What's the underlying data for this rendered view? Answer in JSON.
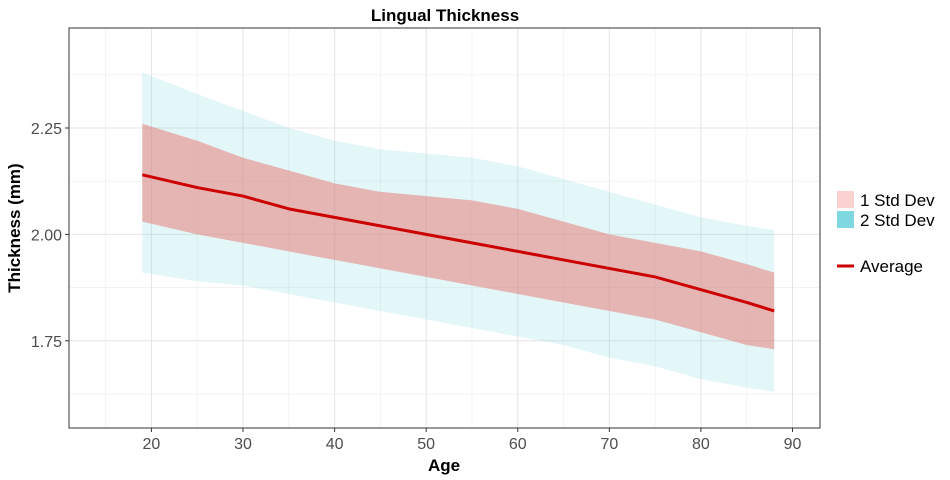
{
  "chart_data": {
    "type": "area",
    "title": "Lingual Thickness",
    "xlabel": "Age",
    "ylabel": "Thickness (mm)",
    "xlim": [
      11,
      93
    ],
    "ylim": [
      1.545,
      2.485
    ],
    "x_ticks": [
      20,
      30,
      40,
      50,
      60,
      70,
      80,
      90
    ],
    "y_ticks": [
      1.75,
      2.0,
      2.25
    ],
    "y_tick_labels": [
      "1.75",
      "2.00",
      "2.25"
    ],
    "grid": true,
    "legend_position": "right",
    "x": [
      19,
      25,
      30,
      35,
      40,
      45,
      50,
      55,
      60,
      65,
      70,
      75,
      80,
      85,
      88
    ],
    "series": [
      {
        "name": "2 Std Dev",
        "kind": "ribbon",
        "color": "#7fd8e0",
        "upper": [
          2.38,
          2.33,
          2.29,
          2.25,
          2.22,
          2.2,
          2.19,
          2.18,
          2.16,
          2.13,
          2.1,
          2.07,
          2.04,
          2.02,
          2.01
        ],
        "lower": [
          1.91,
          1.89,
          1.88,
          1.86,
          1.84,
          1.82,
          1.8,
          1.78,
          1.76,
          1.74,
          1.71,
          1.69,
          1.66,
          1.64,
          1.63
        ]
      },
      {
        "name": "1 Std Dev",
        "kind": "ribbon",
        "color": "#e8807a",
        "upper": [
          2.26,
          2.22,
          2.18,
          2.15,
          2.12,
          2.1,
          2.09,
          2.08,
          2.06,
          2.03,
          2.0,
          1.98,
          1.96,
          1.93,
          1.91
        ],
        "lower": [
          2.03,
          2.0,
          1.98,
          1.96,
          1.94,
          1.92,
          1.9,
          1.88,
          1.86,
          1.84,
          1.82,
          1.8,
          1.77,
          1.74,
          1.73
        ]
      },
      {
        "name": "Average",
        "kind": "line",
        "color": "#cc0000",
        "values": [
          2.14,
          2.11,
          2.09,
          2.06,
          2.04,
          2.02,
          2.0,
          1.98,
          1.96,
          1.94,
          1.92,
          1.9,
          1.87,
          1.84,
          1.82
        ]
      }
    ],
    "legend": {
      "fill_items": [
        "1 Std Dev",
        "2 Std Dev"
      ],
      "line_items": [
        "Average"
      ]
    }
  }
}
